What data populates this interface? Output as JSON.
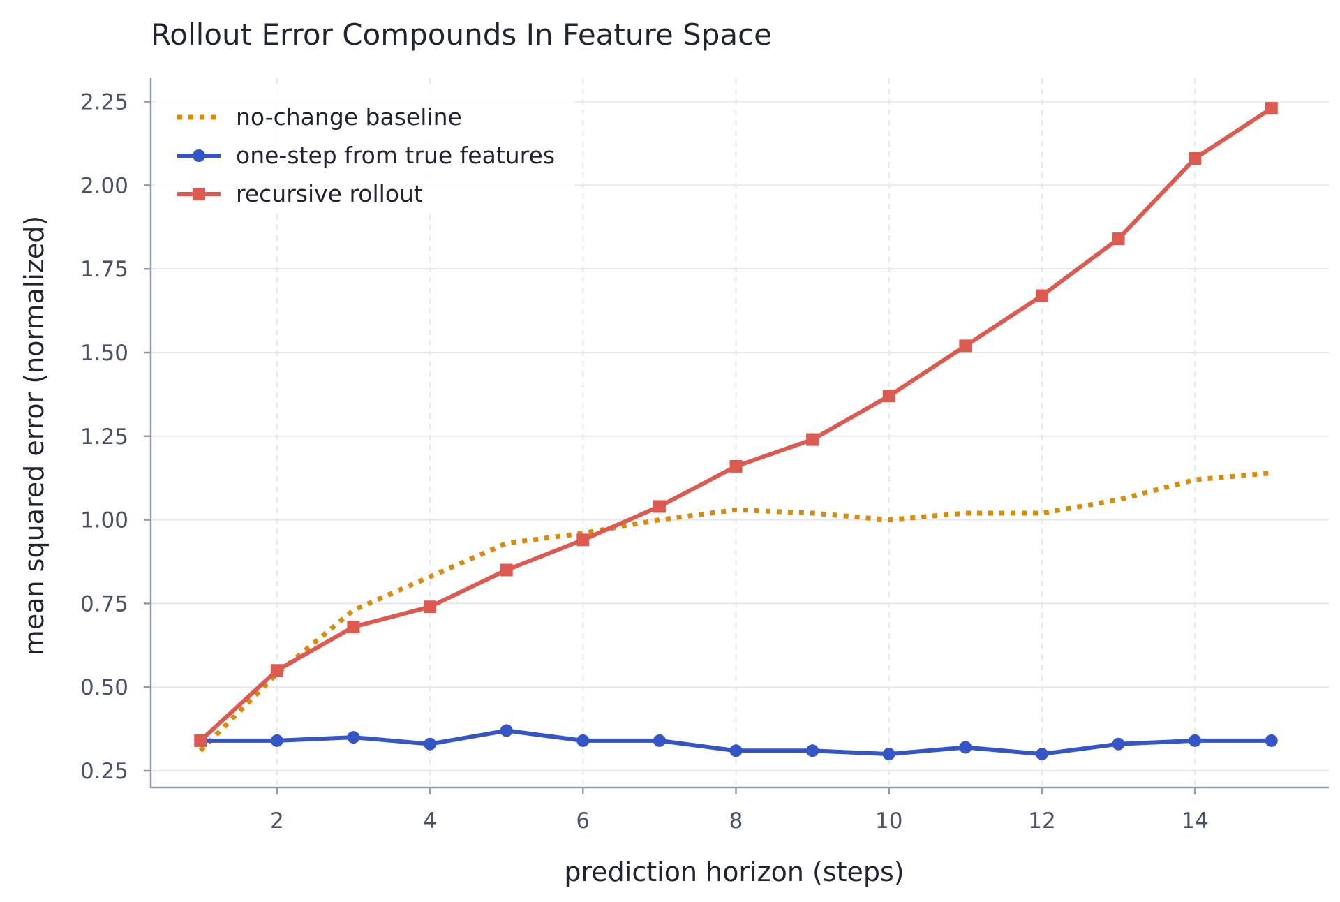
{
  "chart_data": {
    "type": "line",
    "title": "Rollout Error Compounds In Feature Space",
    "xlabel": "prediction horizon (steps)",
    "ylabel": "mean squared error (normalized)",
    "xlim": [
      0.35,
      15.75
    ],
    "ylim": [
      0.2,
      2.32
    ],
    "x_ticks": [
      2,
      4,
      6,
      8,
      10,
      12,
      14
    ],
    "y_ticks": [
      0.25,
      0.5,
      0.75,
      1.0,
      1.25,
      1.5,
      1.75,
      2.0,
      2.25
    ],
    "y_tick_labels": [
      "0.25",
      "0.50",
      "0.75",
      "1.00",
      "1.25",
      "1.50",
      "1.75",
      "2.00",
      "2.25"
    ],
    "grid": true,
    "legend_position": "top-left",
    "x": [
      1,
      2,
      3,
      4,
      5,
      6,
      7,
      8,
      9,
      10,
      11,
      12,
      13,
      14,
      15
    ],
    "series": [
      {
        "name": "no-change baseline",
        "style": "dotted",
        "marker": "none",
        "color": "#d98c0b",
        "values": [
          0.31,
          0.54,
          0.73,
          0.83,
          0.93,
          0.96,
          1.0,
          1.03,
          1.02,
          1.0,
          1.02,
          1.02,
          1.06,
          1.12,
          1.14
        ]
      },
      {
        "name": "one-step from true features",
        "style": "solid",
        "marker": "circle",
        "color": "#3355c8",
        "values": [
          0.34,
          0.34,
          0.35,
          0.33,
          0.37,
          0.34,
          0.34,
          0.31,
          0.31,
          0.3,
          0.32,
          0.3,
          0.33,
          0.34,
          0.34
        ]
      },
      {
        "name": "recursive rollout",
        "style": "solid",
        "marker": "square",
        "color": "#dc5a50",
        "values": [
          0.34,
          0.55,
          0.68,
          0.74,
          0.85,
          0.94,
          1.04,
          1.16,
          1.24,
          1.37,
          1.52,
          1.67,
          1.84,
          2.08,
          2.23
        ]
      }
    ]
  }
}
